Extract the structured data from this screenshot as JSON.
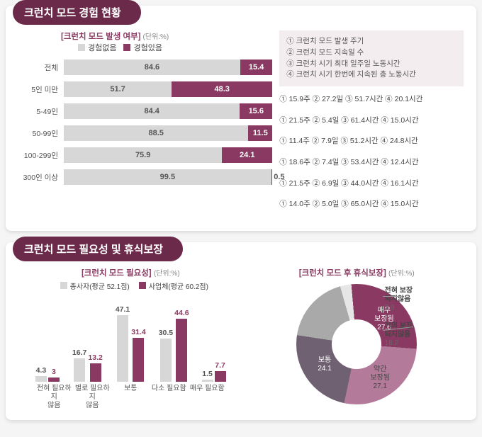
{
  "colors": {
    "purple": "#8a3a62",
    "gray": "#d7d7d7",
    "darkgray": "#a9a9a9",
    "lightgray": "#e6e6e6",
    "textdark": "#444",
    "white": "#fff"
  },
  "section1": {
    "title": "크런치 모드 경험 현황",
    "subtitle": "[크런치 모드 발생 여부]",
    "unit": "(단위:%)",
    "legend": {
      "no": "경험없음",
      "yes": "경험있음"
    },
    "info": [
      "① 크런치 모드 발생 주기",
      "② 크런치 모드 지속일 수",
      "③ 크런치 시기 최대 일주일 노동시간",
      "④ 크런치 시기 한번에 지속된 총 노동시간"
    ],
    "rows": [
      {
        "label": "전체",
        "no": 84.6,
        "yes": 15.4,
        "stats": [
          "① 15.9주",
          "② 27.2일",
          "③ 51.7시간",
          "④ 20.1시간"
        ]
      },
      {
        "label": "5인 미만",
        "no": 51.7,
        "yes": 48.3,
        "stats": [
          "① 21.5주",
          "② 5.4일",
          "③ 61.4시간",
          "④ 15.0시간"
        ]
      },
      {
        "label": "5-49인",
        "no": 84.4,
        "yes": 15.6,
        "stats": [
          "① 11.4주",
          "② 7.9일",
          "③ 51.2시간",
          "④ 24.8시간"
        ]
      },
      {
        "label": "50-99인",
        "no": 88.5,
        "yes": 11.5,
        "stats": [
          "① 18.6주",
          "② 7.4일",
          "③ 53.4시간",
          "④ 12.4시간"
        ]
      },
      {
        "label": "100-299인",
        "no": 75.9,
        "yes": 24.1,
        "stats": [
          "① 21.5주",
          "② 6.9일",
          "③ 44.0시간",
          "④ 16.1시간"
        ]
      },
      {
        "label": "300인 이상",
        "no": 99.5,
        "yes": 0.5,
        "stats": [
          "① 14.0주",
          "② 5.0일",
          "③ 65.0시간",
          "④ 15.0시간"
        ]
      }
    ]
  },
  "section2": {
    "title": "크런치 모드 필요성 및 휴식보장",
    "necessity": {
      "subtitle": "[크런치 모드 필요성]",
      "unit": "(단위:%)",
      "legend": {
        "a": "종사자(평균 52.1점)",
        "b": "사업체(평균 60.2점)"
      },
      "categories": [
        "전혀 필요하지\n않음",
        "별로 필요하지\n않음",
        "보통",
        "다소 필요함",
        "매우 필요함"
      ],
      "series_a": [
        4.3,
        16.7,
        47.1,
        30.5,
        1.5
      ],
      "series_b": [
        3.0,
        13.2,
        31.4,
        44.6,
        7.7
      ],
      "color_a": "#d7d7d7",
      "color_b": "#8a3a62",
      "max": 50
    },
    "rest": {
      "subtitle": "[크런치 모드 후 휴식보장]",
      "unit": "(단위:%)",
      "slices": [
        {
          "name": "매우\n보장됨",
          "value": 27.6,
          "color": "#8a3a62",
          "textcolor": "#fff",
          "internal": true
        },
        {
          "name": "약간\n보장됨",
          "value": 27.1,
          "color": "#b37a9a",
          "textcolor": "#444",
          "internal": true
        },
        {
          "name": "보통",
          "value": 24.1,
          "color": "#6f6072",
          "textcolor": "#fff",
          "internal": true
        },
        {
          "name": "거의 보장\n되지않음",
          "value": 18.2,
          "color": "#a9a9a9",
          "textcolor": "#444",
          "internal": false
        },
        {
          "name": "전혀 보장\n되지않음",
          "value": 2.9,
          "color": "#e6e6e6",
          "textcolor": "#444",
          "internal": false
        }
      ]
    }
  }
}
